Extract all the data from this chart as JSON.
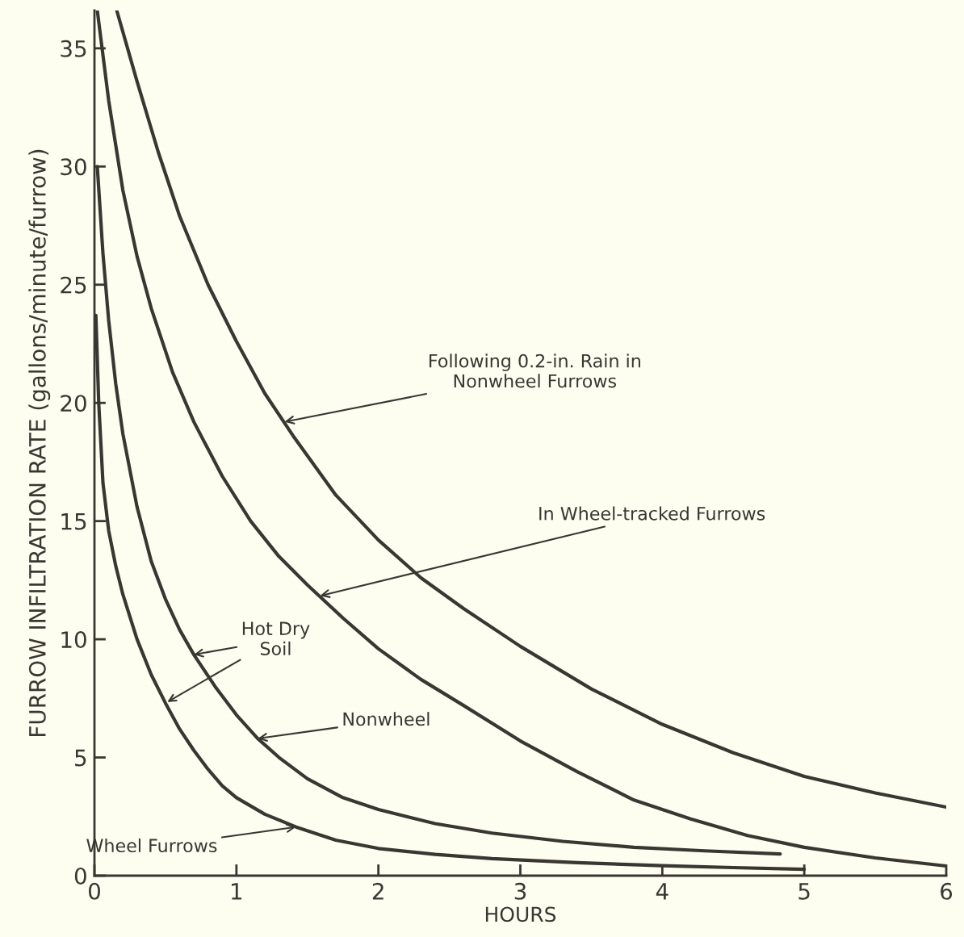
{
  "chart_data": {
    "type": "line",
    "xlabel": "HOURS",
    "ylabel": "FURROW INFILTRATION RATE (gallons/minute/furrow)",
    "xlim": [
      0,
      6
    ],
    "xticks": [
      0,
      1,
      2,
      3,
      4,
      5,
      6
    ],
    "ylim": [
      0,
      36.6
    ],
    "yticks": [
      0,
      5,
      10,
      15,
      20,
      25,
      30,
      35
    ],
    "grid": false,
    "legend": false,
    "marker": "none",
    "line_style": "solid",
    "series": [
      {
        "color": "#3a3632",
        "x": [
          0.157,
          0.3,
          0.45,
          0.6,
          0.8,
          1.0,
          1.2,
          1.4,
          1.7,
          2.0,
          2.3,
          2.6,
          3.0,
          3.5,
          4.0,
          4.5,
          5.0,
          5.5,
          6.0
        ],
        "values": [
          36.6,
          33.6,
          30.6,
          27.9,
          25.0,
          22.6,
          20.4,
          18.6,
          16.1,
          14.2,
          12.6,
          11.3,
          9.7,
          7.9,
          6.4,
          5.2,
          4.2,
          3.5,
          2.9
        ]
      },
      {
        "color": "#3a3632",
        "x": [
          0.02,
          0.1,
          0.2,
          0.3,
          0.4,
          0.55,
          0.7,
          0.9,
          1.1,
          1.3,
          1.5,
          1.75,
          2.0,
          2.3,
          2.6,
          3.0,
          3.4,
          3.8,
          4.2,
          4.6,
          5.0,
          5.5,
          6.0
        ],
        "values": [
          36.6,
          32.8,
          29.0,
          26.2,
          24.0,
          21.3,
          19.2,
          16.9,
          15.0,
          13.5,
          12.3,
          10.9,
          9.6,
          8.3,
          7.2,
          5.7,
          4.4,
          3.2,
          2.4,
          1.7,
          1.2,
          0.75,
          0.41
        ]
      },
      {
        "color": "#3a3632",
        "x": [
          0.02,
          0.06,
          0.1,
          0.15,
          0.2,
          0.3,
          0.4,
          0.5,
          0.6,
          0.7,
          0.85,
          1.0,
          1.15,
          1.3,
          1.5,
          1.75,
          2.0,
          2.4,
          2.8,
          3.3,
          3.8,
          4.3,
          4.83
        ],
        "values": [
          30.0,
          26.3,
          23.5,
          20.8,
          18.7,
          15.6,
          13.3,
          11.7,
          10.4,
          9.35,
          8.0,
          6.8,
          5.8,
          5.0,
          4.1,
          3.3,
          2.8,
          2.2,
          1.8,
          1.45,
          1.2,
          1.05,
          0.92
        ]
      },
      {
        "color": "#3a3632",
        "x": [
          0.01,
          0.03,
          0.06,
          0.1,
          0.15,
          0.2,
          0.3,
          0.4,
          0.5,
          0.6,
          0.7,
          0.8,
          0.9,
          1.0,
          1.2,
          1.42,
          1.7,
          2.0,
          2.4,
          2.8,
          3.4,
          4.0,
          4.5,
          5.0
        ],
        "values": [
          23.7,
          20.0,
          16.6,
          14.6,
          13.1,
          11.9,
          10.0,
          8.5,
          7.3,
          6.2,
          5.3,
          4.5,
          3.8,
          3.3,
          2.6,
          2.06,
          1.5,
          1.15,
          0.9,
          0.72,
          0.55,
          0.42,
          0.34,
          0.27
        ]
      }
    ],
    "annotations": [
      {
        "text": "Following 0.2-in. Rain in\nNonwheel Furrows",
        "x": 1.34,
        "y": 19.2
      },
      {
        "text": "In Wheel-tracked Furrows",
        "x": 1.59,
        "y": 11.84
      },
      {
        "text": "Hot Dry\nSoil",
        "x": 0.7,
        "y": 9.35
      },
      {
        "text": "Nonwheel",
        "x": 1.15,
        "y": 5.8
      },
      {
        "text": "Wheel Furrows",
        "x": 1.42,
        "y": 2.06
      }
    ]
  }
}
